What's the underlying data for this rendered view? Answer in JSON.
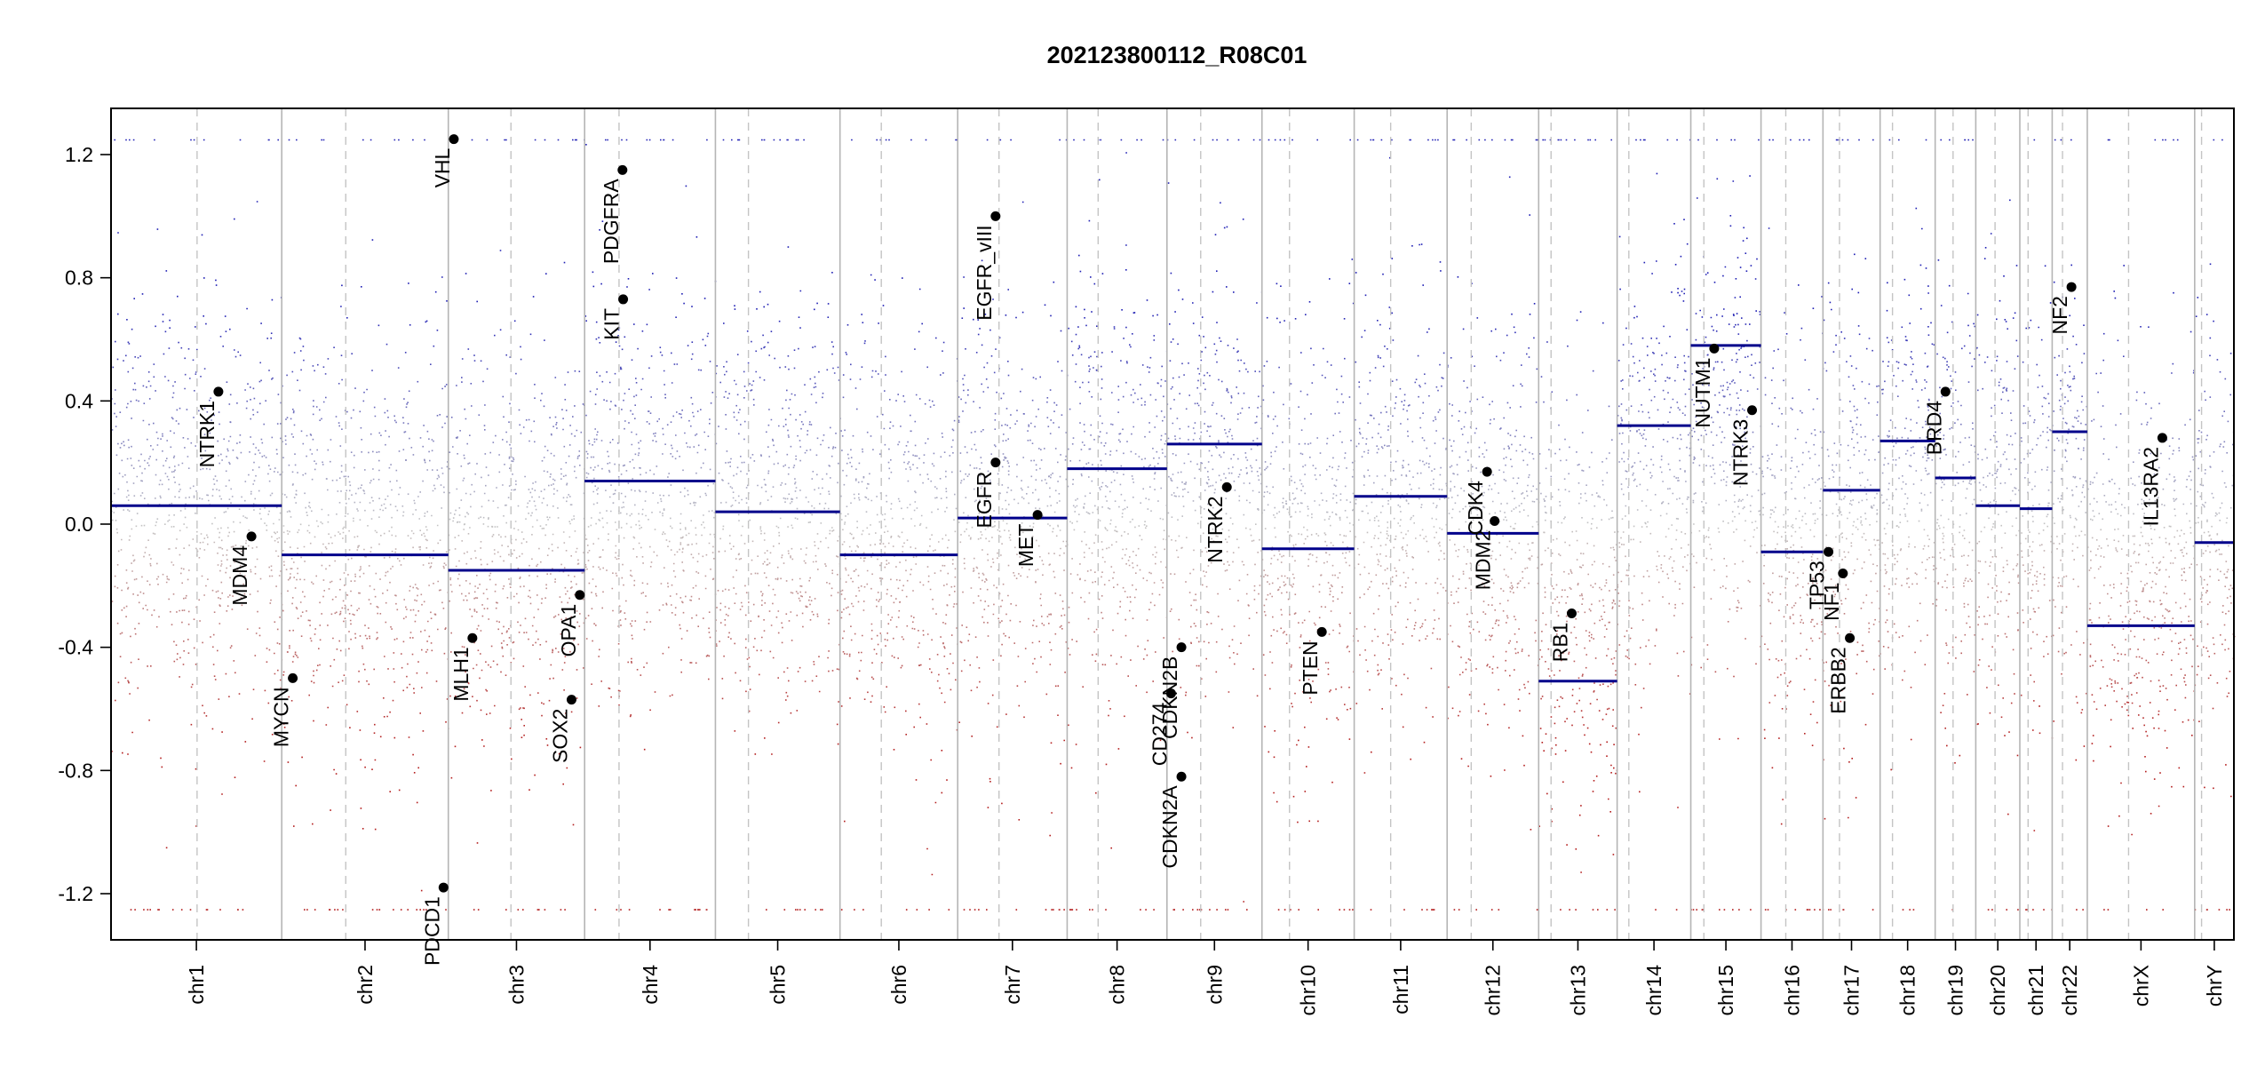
{
  "chart_data": {
    "type": "scatter",
    "title": "202123800112_R08C01",
    "xlabel": "",
    "ylabel": "",
    "ylim": [
      -1.35,
      1.35
    ],
    "y_ticks": [
      "1.2",
      "0.8",
      "0.4",
      "0.0",
      "-0.4",
      "-0.8",
      "-1.2"
    ],
    "y_tick_values": [
      1.2,
      0.8,
      0.4,
      0.0,
      -0.4,
      -0.8,
      -1.2
    ],
    "colors": {
      "gain": "#1f1fb4",
      "loss": "#b41f1f",
      "neutral": "#bdbdbd",
      "segment": "#00008b",
      "gene": "#000000"
    },
    "chromosomes": [
      {
        "name": "chr1",
        "start": 0.0,
        "end": 248.0,
        "cen": 125.0,
        "segment": 0.06
      },
      {
        "name": "chr2",
        "start": 248.0,
        "end": 490.0,
        "cen": 93.0,
        "segment": -0.1
      },
      {
        "name": "chr3",
        "start": 490.0,
        "end": 688.0,
        "cen": 91.0,
        "segment": -0.15
      },
      {
        "name": "chr4",
        "start": 688.0,
        "end": 878.0,
        "cen": 50.0,
        "segment": 0.14
      },
      {
        "name": "chr5",
        "start": 878.0,
        "end": 1059.0,
        "cen": 48.0,
        "segment": 0.04
      },
      {
        "name": "chr6",
        "start": 1059.0,
        "end": 1230.0,
        "cen": 60.0,
        "segment": -0.1
      },
      {
        "name": "chr7",
        "start": 1230.0,
        "end": 1389.0,
        "cen": 60.0,
        "segment": 0.02
      },
      {
        "name": "chr8",
        "start": 1389.0,
        "end": 1534.0,
        "cen": 45.0,
        "segment": 0.18
      },
      {
        "name": "chr9",
        "start": 1534.0,
        "end": 1672.0,
        "cen": 49.0,
        "segment": 0.26
      },
      {
        "name": "chr10",
        "start": 1672.0,
        "end": 1806.0,
        "cen": 40.0,
        "segment": -0.08
      },
      {
        "name": "chr11",
        "start": 1806.0,
        "end": 1941.0,
        "cen": 53.0,
        "segment": 0.09
      },
      {
        "name": "chr12",
        "start": 1941.0,
        "end": 2074.0,
        "cen": 35.0,
        "segment": -0.03
      },
      {
        "name": "chr13",
        "start": 2074.0,
        "end": 2188.0,
        "cen": 18.0,
        "segment": -0.51
      },
      {
        "name": "chr14",
        "start": 2188.0,
        "end": 2295.0,
        "cen": 17.0,
        "segment": 0.32
      },
      {
        "name": "chr15",
        "start": 2295.0,
        "end": 2397.0,
        "cen": 19.0,
        "segment": 0.58
      },
      {
        "name": "chr16",
        "start": 2397.0,
        "end": 2487.0,
        "cen": 36.0,
        "segment": -0.09
      },
      {
        "name": "chr17",
        "start": 2487.0,
        "end": 2570.0,
        "cen": 24.0,
        "segment": 0.11
      },
      {
        "name": "chr18",
        "start": 2570.0,
        "end": 2650.0,
        "cen": 18.0,
        "segment": 0.27
      },
      {
        "name": "chr19",
        "start": 2650.0,
        "end": 2709.0,
        "cen": 26.0,
        "segment": 0.15
      },
      {
        "name": "chr20",
        "start": 2709.0,
        "end": 2773.0,
        "cen": 28.0,
        "segment": 0.06
      },
      {
        "name": "chr21",
        "start": 2773.0,
        "end": 2820.0,
        "cen": 12.0,
        "segment": 0.05
      },
      {
        "name": "chr22",
        "start": 2820.0,
        "end": 2871.0,
        "cen": 15.0,
        "segment": 0.3
      },
      {
        "name": "chrX",
        "start": 2871.0,
        "end": 3027.0,
        "cen": 60.0,
        "segment": -0.33
      },
      {
        "name": "chrY",
        "start": 3027.0,
        "end": 3084.0,
        "cen": 10.0,
        "segment": -0.06
      }
    ],
    "genes": [
      {
        "name": "NTRK1",
        "x": 156.0,
        "y": 0.43
      },
      {
        "name": "MDM4",
        "x": 204.0,
        "y": -0.04
      },
      {
        "name": "MYCN",
        "x": 264.0,
        "y": -0.5
      },
      {
        "name": "PDCD1",
        "x": 483.0,
        "y": -1.18
      },
      {
        "name": "VHL",
        "x": 498.0,
        "y": 1.25
      },
      {
        "name": "MLH1",
        "x": 525.0,
        "y": -0.37
      },
      {
        "name": "SOX2",
        "x": 669.0,
        "y": -0.57
      },
      {
        "name": "OPA1",
        "x": 681.0,
        "y": -0.23
      },
      {
        "name": "PDGFRA",
        "x": 743.0,
        "y": 1.15
      },
      {
        "name": "KIT",
        "x": 744.0,
        "y": 0.73
      },
      {
        "name": "EGFR_vIII",
        "x": 1285.0,
        "y": 1.0
      },
      {
        "name": "EGFR",
        "x": 1285.0,
        "y": 0.2
      },
      {
        "name": "MET",
        "x": 1346.0,
        "y": 0.03
      },
      {
        "name": "CDKN2A",
        "x": 1555.0,
        "y": -0.82
      },
      {
        "name": "CDKN2B",
        "x": 1555.0,
        "y": -0.4
      },
      {
        "name": "CD274",
        "x": 1540.0,
        "y": -0.55
      },
      {
        "name": "NTRK2",
        "x": 1621.0,
        "y": 0.12
      },
      {
        "name": "PTEN",
        "x": 1759.0,
        "y": -0.35
      },
      {
        "name": "CDK4",
        "x": 1999.0,
        "y": 0.17
      },
      {
        "name": "MDM2",
        "x": 2010.0,
        "y": 0.01
      },
      {
        "name": "RB1",
        "x": 2122.0,
        "y": -0.29
      },
      {
        "name": "NUTM1",
        "x": 2329.0,
        "y": 0.57
      },
      {
        "name": "NTRK3",
        "x": 2384.0,
        "y": 0.37
      },
      {
        "name": "TP53",
        "x": 2495.0,
        "y": -0.09
      },
      {
        "name": "NF1",
        "x": 2516.0,
        "y": -0.16
      },
      {
        "name": "ERBB2",
        "x": 2526.0,
        "y": -0.37
      },
      {
        "name": "BRD4",
        "x": 2665.0,
        "y": 0.43
      },
      {
        "name": "NF2",
        "x": 2848.0,
        "y": 0.77
      },
      {
        "name": "IL13RA2",
        "x": 2980.0,
        "y": 0.28
      }
    ]
  }
}
